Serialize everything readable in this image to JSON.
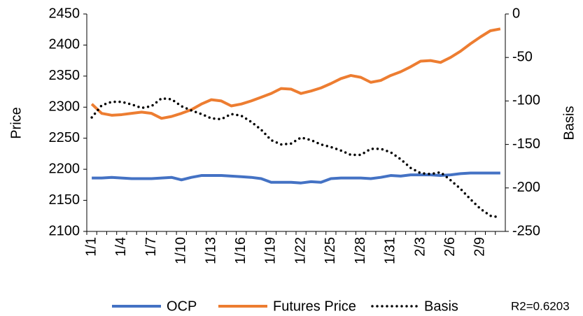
{
  "chart_data": {
    "type": "line",
    "categories": [
      "1/1",
      null,
      null,
      "1/4",
      null,
      null,
      "1/7",
      null,
      null,
      "1/10",
      null,
      null,
      "1/13",
      null,
      null,
      "1/16",
      null,
      null,
      "1/19",
      null,
      null,
      "1/22",
      null,
      null,
      "1/25",
      null,
      null,
      "1/28",
      null,
      null,
      "1/31",
      null,
      null,
      "2/3",
      null,
      null,
      "2/6",
      null,
      null,
      "2/9",
      null,
      null
    ],
    "series": [
      {
        "name": "OCP",
        "color": "#4472c4",
        "values": [
          2186,
          2186,
          2187,
          2186,
          2185,
          2185,
          2185,
          2186,
          2187,
          2183,
          2187,
          2190,
          2190,
          2190,
          2189,
          2188,
          2187,
          2185,
          2179,
          2179,
          2179,
          2178,
          2180,
          2179,
          2185,
          2186,
          2186,
          2186,
          2185,
          2187,
          2190,
          2189,
          2191,
          2191,
          2191,
          2190,
          2191,
          2193,
          2194,
          2194,
          2194,
          2194
        ]
      },
      {
        "name": "Futures Price",
        "color": "#ed7d31",
        "values": [
          2305,
          2290,
          2287,
          2288,
          2290,
          2292,
          2290,
          2282,
          2285,
          2290,
          2296,
          2305,
          2312,
          2310,
          2302,
          2305,
          2310,
          2316,
          2322,
          2330,
          2329,
          2322,
          2326,
          2331,
          2338,
          2346,
          2351,
          2348,
          2340,
          2343,
          2351,
          2357,
          2365,
          2374,
          2375,
          2372,
          2380,
          2390,
          2402,
          2413,
          2423,
          2426
        ]
      },
      {
        "name": "Basis",
        "color": "#000000",
        "axis": "y2",
        "style": "dotted",
        "values": [
          -119,
          -105,
          -101,
          -101,
          -104,
          -108,
          -106,
          -97,
          -98,
          -106,
          -111,
          -115,
          -120,
          -121,
          -115,
          -117,
          -124,
          -133,
          -145,
          -150,
          -149,
          -142,
          -145,
          -150,
          -153,
          -157,
          -162,
          -162,
          -155,
          -155,
          -159,
          -167,
          -177,
          -183,
          -184,
          -182,
          -191,
          -201,
          -213,
          -224,
          -232,
          -234
        ]
      }
    ],
    "y_label": "Price",
    "y2_label": "Basis",
    "ylim": [
      2100,
      2450
    ],
    "yticks": [
      2100,
      2150,
      2200,
      2250,
      2300,
      2350,
      2400,
      2450
    ],
    "y2lim": [
      -250,
      0
    ],
    "y2ticks": [
      -250,
      -200,
      -150,
      -100,
      -50,
      0
    ],
    "annotation": "R2=0.6203",
    "legend": "bottom"
  }
}
